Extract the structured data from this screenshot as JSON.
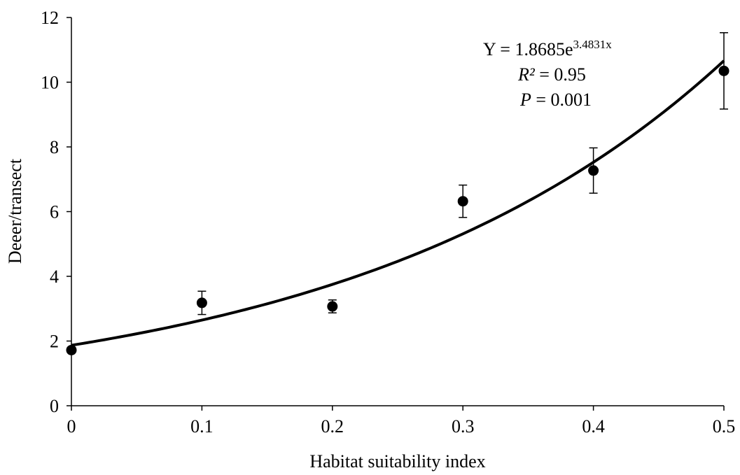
{
  "chart_data": {
    "type": "scatter",
    "title": "",
    "xlabel": "Habitat suitability index",
    "ylabel": "Deeer/transect",
    "xlim": [
      0,
      0.5
    ],
    "ylim": [
      0,
      12
    ],
    "x_ticks": [
      0,
      0.1,
      0.2,
      0.3,
      0.4,
      0.5
    ],
    "x_tick_labels": [
      "0",
      "0.1",
      "0.2",
      "0.3",
      "0.4",
      "0.5"
    ],
    "y_ticks": [
      0,
      2,
      4,
      6,
      8,
      10,
      12
    ],
    "y_tick_labels": [
      "0",
      "2",
      "4",
      "6",
      "8",
      "10",
      "12"
    ],
    "grid": false,
    "legend": "none",
    "colors": {
      "marker": "#000000",
      "fit_line": "#000000",
      "axis": "#000000"
    },
    "series": [
      {
        "points": [
          {
            "x": 0.0,
            "y": 1.72,
            "err": 0.0
          },
          {
            "x": 0.1,
            "y": 3.18,
            "err": 0.36
          },
          {
            "x": 0.2,
            "y": 3.07,
            "err": 0.2
          },
          {
            "x": 0.3,
            "y": 6.32,
            "err": 0.5
          },
          {
            "x": 0.4,
            "y": 7.27,
            "err": 0.7
          },
          {
            "x": 0.5,
            "y": 10.35,
            "err": 1.18
          }
        ]
      }
    ],
    "fit": {
      "type": "exponential",
      "a": 1.8685,
      "b": 3.4831
    },
    "annotations": {
      "equation_base": "Y = 1.8685e",
      "equation_exponent": "3.4831x",
      "r2_symbol": "R²",
      "r2_value": " = 0.95",
      "p_symbol": "P",
      "p_value": " = 0.001"
    }
  }
}
